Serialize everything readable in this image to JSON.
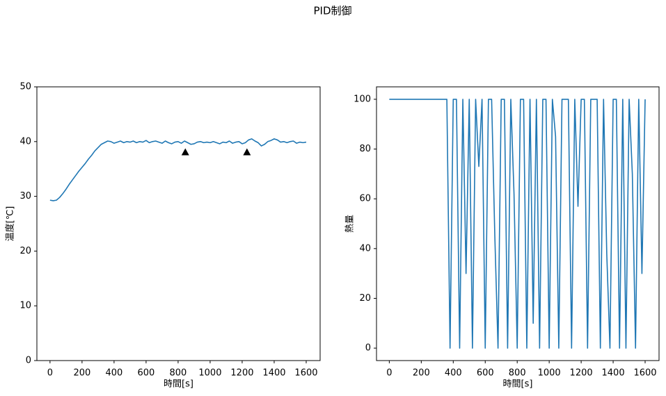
{
  "title": "PID制御",
  "chart_data": [
    {
      "type": "line",
      "xlabel": "時間[s]",
      "ylabel": "温度[℃]",
      "xlim": [
        -82,
        1687
      ],
      "ylim": [
        0,
        50
      ],
      "xticks": [
        0,
        200,
        400,
        600,
        800,
        1000,
        1200,
        1400,
        1600
      ],
      "yticks": [
        0,
        10,
        20,
        30,
        40,
        50
      ],
      "series": [
        {
          "color": "#1f77b4",
          "x": [
            0,
            20,
            40,
            60,
            80,
            100,
            120,
            140,
            160,
            180,
            200,
            220,
            240,
            260,
            280,
            300,
            320,
            340,
            360,
            380,
            400,
            420,
            440,
            460,
            480,
            500,
            520,
            540,
            560,
            580,
            600,
            620,
            640,
            660,
            680,
            700,
            720,
            740,
            760,
            780,
            800,
            820,
            840,
            860,
            880,
            900,
            920,
            940,
            960,
            980,
            1000,
            1020,
            1040,
            1060,
            1080,
            1100,
            1120,
            1140,
            1160,
            1180,
            1200,
            1220,
            1240,
            1260,
            1280,
            1300,
            1320,
            1340,
            1360,
            1380,
            1400,
            1420,
            1440,
            1460,
            1480,
            1500,
            1520,
            1540,
            1560,
            1580,
            1600
          ],
          "values": [
            29.3,
            29.2,
            29.3,
            29.8,
            30.5,
            31.3,
            32.2,
            33.0,
            33.8,
            34.6,
            35.3,
            36.0,
            36.8,
            37.5,
            38.3,
            38.9,
            39.5,
            39.8,
            40.1,
            40.0,
            39.7,
            39.9,
            40.1,
            39.8,
            40.0,
            39.9,
            40.1,
            39.8,
            40.0,
            39.9,
            40.2,
            39.8,
            40.0,
            40.1,
            39.9,
            39.7,
            40.1,
            39.8,
            39.6,
            39.9,
            40.0,
            39.7,
            40.1,
            39.8,
            39.5,
            39.6,
            39.9,
            40.0,
            39.8,
            39.9,
            39.8,
            40.0,
            39.8,
            39.6,
            39.9,
            39.8,
            40.1,
            39.7,
            39.9,
            40.0,
            39.6,
            39.8,
            40.3,
            40.5,
            40.1,
            39.8,
            39.2,
            39.5,
            40.0,
            40.2,
            40.5,
            40.3,
            39.9,
            40.0,
            39.8,
            40.0,
            40.1,
            39.7,
            39.9,
            39.8,
            39.9
          ]
        },
        {
          "color": "#000000",
          "marker": "^",
          "x": [
            845,
            1230
          ],
          "values": [
            38,
            38
          ]
        }
      ]
    },
    {
      "type": "line",
      "xlabel": "時間[s]",
      "ylabel": "熱量",
      "xlim": [
        -80,
        1687
      ],
      "ylim": [
        -5,
        105
      ],
      "xticks": [
        0,
        200,
        400,
        600,
        800,
        1000,
        1200,
        1400,
        1600
      ],
      "yticks": [
        0,
        20,
        40,
        60,
        80,
        100
      ],
      "series": [
        {
          "color": "#1f77b4",
          "x": [
            0,
            20,
            40,
            60,
            80,
            100,
            120,
            140,
            160,
            180,
            200,
            220,
            240,
            260,
            280,
            300,
            320,
            340,
            360,
            380,
            400,
            420,
            440,
            460,
            480,
            500,
            520,
            540,
            560,
            580,
            600,
            620,
            640,
            660,
            680,
            700,
            720,
            740,
            760,
            780,
            800,
            820,
            840,
            860,
            880,
            900,
            920,
            940,
            960,
            980,
            1000,
            1020,
            1040,
            1060,
            1080,
            1100,
            1120,
            1140,
            1160,
            1180,
            1200,
            1220,
            1240,
            1260,
            1280,
            1300,
            1320,
            1340,
            1360,
            1380,
            1400,
            1420,
            1440,
            1460,
            1480,
            1500,
            1520,
            1540,
            1560,
            1580,
            1600
          ],
          "values": [
            100,
            100,
            100,
            100,
            100,
            100,
            100,
            100,
            100,
            100,
            100,
            100,
            100,
            100,
            100,
            100,
            100,
            100,
            100,
            0,
            100,
            100,
            0,
            100,
            30,
            100,
            0,
            100,
            73,
            100,
            0,
            100,
            100,
            45,
            0,
            100,
            100,
            0,
            100,
            62,
            0,
            100,
            100,
            0,
            100,
            10,
            100,
            0,
            100,
            100,
            0,
            100,
            85,
            0,
            100,
            100,
            100,
            0,
            100,
            57,
            100,
            100,
            0,
            100,
            100,
            100,
            0,
            100,
            38,
            0,
            100,
            100,
            0,
            100,
            0,
            100,
            70,
            0,
            100,
            30,
            100
          ]
        }
      ]
    }
  ]
}
